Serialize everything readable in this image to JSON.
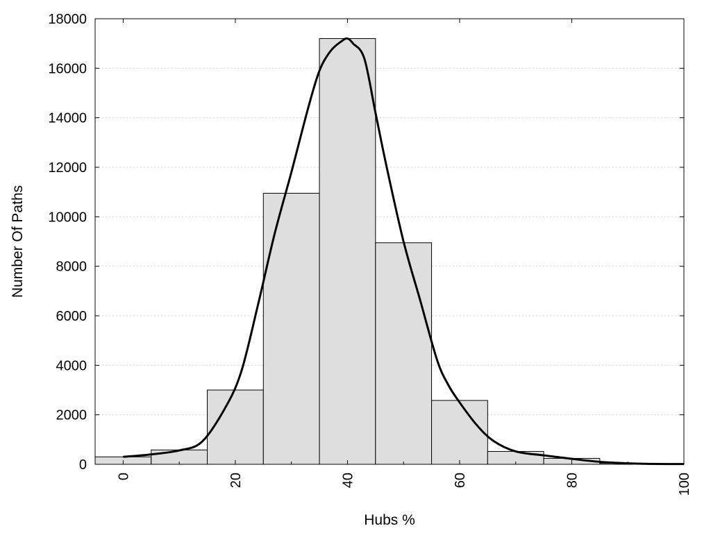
{
  "chart_data": {
    "type": "bar",
    "title": "",
    "xlabel": "Hubs %",
    "ylabel": "Number Of Paths",
    "xlim": [
      -5,
      100
    ],
    "ylim": [
      0,
      18000
    ],
    "x_ticks": [
      0,
      20,
      40,
      60,
      80,
      100
    ],
    "y_ticks": [
      0,
      2000,
      4000,
      6000,
      8000,
      10000,
      12000,
      14000,
      16000,
      18000
    ],
    "grid": "horizontal dotted",
    "bar_fill": "#dedede",
    "bar_stroke": "#000000",
    "bin_width": 10,
    "bins": [
      {
        "center": 0,
        "value": 300
      },
      {
        "center": 10,
        "value": 580
      },
      {
        "center": 20,
        "value": 3000
      },
      {
        "center": 30,
        "value": 10950
      },
      {
        "center": 40,
        "value": 17200
      },
      {
        "center": 50,
        "value": 8950
      },
      {
        "center": 60,
        "value": 2580
      },
      {
        "center": 70,
        "value": 520
      },
      {
        "center": 80,
        "value": 240
      },
      {
        "center": 90,
        "value": 40
      },
      {
        "center": 100,
        "value": 10
      }
    ],
    "curve": {
      "type": "line",
      "color": "#000000",
      "x": [
        0,
        5,
        10,
        14,
        18,
        21,
        24,
        27,
        30,
        33,
        35,
        37,
        39,
        40,
        41,
        43,
        45,
        47,
        50,
        53,
        56,
        58,
        60,
        63,
        66,
        70,
        75,
        80,
        85,
        90,
        95,
        100
      ],
      "y": [
        300,
        400,
        560,
        900,
        2200,
        3700,
        6400,
        9300,
        11800,
        14400,
        15900,
        16700,
        17100,
        17200,
        17000,
        16400,
        14200,
        12000,
        9000,
        6600,
        4200,
        3200,
        2500,
        1600,
        950,
        520,
        360,
        220,
        100,
        40,
        15,
        10
      ]
    }
  }
}
